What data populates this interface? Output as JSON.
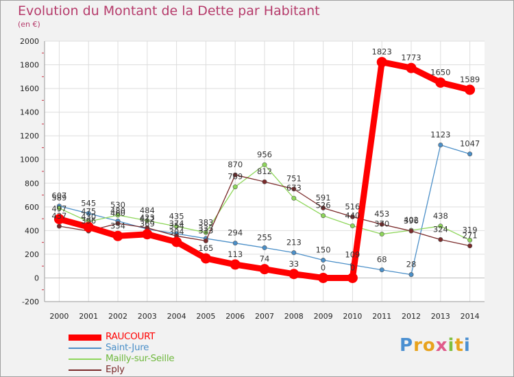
{
  "title": "Evolution du Montant de la Dette par Habitant",
  "subtitle": "(en €)",
  "logo": {
    "text": "Proxiti",
    "letters": [
      {
        "ch": "P",
        "color": "#4a8fd1"
      },
      {
        "ch": "r",
        "color": "#e8a21c"
      },
      {
        "ch": "o",
        "color": "#e8a21c"
      },
      {
        "ch": "x",
        "color": "#e05a8a"
      },
      {
        "ch": "i",
        "color": "#7fbf3f"
      },
      {
        "ch": "t",
        "color": "#e8a21c"
      },
      {
        "ch": "i",
        "color": "#4a8fd1"
      }
    ]
  },
  "chart_data": {
    "type": "line",
    "title": "Evolution du Montant de la Dette par Habitant",
    "subtitle": "(en €)",
    "x": [
      "2000",
      "2001",
      "2002",
      "2003",
      "2004",
      "2005",
      "2006",
      "2007",
      "2008",
      "2009",
      "2010",
      "2011",
      "2012",
      "2013",
      "2014"
    ],
    "ylim": [
      -200,
      2000
    ],
    "yticks": [
      -200,
      0,
      200,
      400,
      600,
      800,
      1000,
      1200,
      1400,
      1600,
      1800,
      2000
    ],
    "grid": true,
    "legend_position": "bottom-left",
    "series": [
      {
        "name": "RAUCOURT",
        "color": "#ff0000",
        "values": [
          497,
          430,
          354,
          369,
          304,
          165,
          113,
          74,
          33,
          0,
          0,
          1823,
          1773,
          1650,
          1589
        ]
      },
      {
        "name": "Saint-Jure",
        "color": "#4b8fc8",
        "values": [
          607,
          545,
          480,
          412,
          374,
          333,
          294,
          255,
          213,
          150,
          109,
          68,
          28,
          1123,
          1047
        ]
      },
      {
        "name": "Mailly-sur-Seille",
        "color": "#8ed65a",
        "values": [
          589,
          475,
          530,
          484,
          435,
          383,
          769,
          956,
          673,
          526,
          440,
          370,
          402,
          438,
          319
        ]
      },
      {
        "name": "Eply",
        "color": "#7a2a2a",
        "values": [
          437,
          396,
          460,
          423,
          354,
          313,
          870,
          812,
          751,
          591,
          516,
          453,
          396,
          324,
          271
        ]
      }
    ]
  }
}
